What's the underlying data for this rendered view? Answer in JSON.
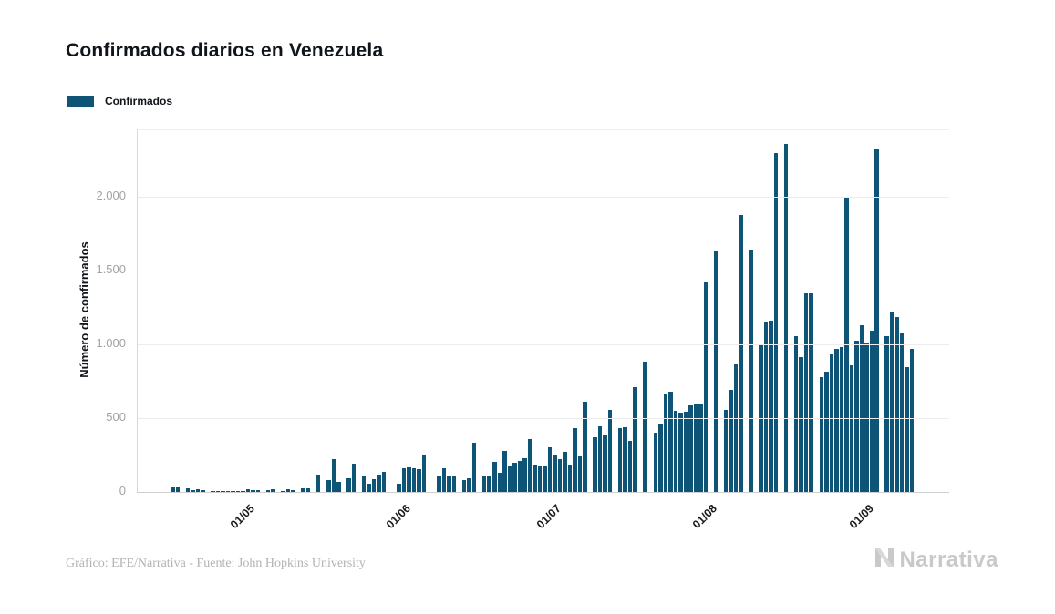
{
  "header": {
    "title": "Confirmados diarios en Venezuela"
  },
  "legend": {
    "label": "Confirmados",
    "swatch_color": "#0d5476"
  },
  "footer": {
    "credit": "Gráfico: EFE/Narrativa - Fuente: John Hopkins University",
    "logo_text": "Narrativa"
  },
  "chart_data": {
    "type": "bar",
    "title": "Confirmados diarios en Venezuela",
    "series_name": "Confirmados",
    "xlabel": "",
    "ylabel": "Número de confirmados",
    "ylim": [
      0,
      2450
    ],
    "grid": "horizontal",
    "legend_position": "top-left",
    "bar_color": "#0d5476",
    "y_ticks": [
      0,
      500,
      1000,
      1500,
      2000
    ],
    "y_tick_labels": [
      "0",
      "500",
      "1.000",
      "1.500",
      "2.000"
    ],
    "x_tick_labels": [
      "01/05",
      "01/06",
      "01/07",
      "01/08",
      "01/09"
    ],
    "x_tick_indices": [
      15,
      46,
      76,
      107,
      138
    ],
    "values": [
      30,
      28,
      0,
      25,
      10,
      18,
      14,
      0,
      4,
      8,
      4,
      6,
      4,
      2,
      3,
      18,
      14,
      10,
      0,
      14,
      16,
      0,
      8,
      20,
      14,
      0,
      24,
      22,
      0,
      120,
      0,
      82,
      220,
      65,
      0,
      90,
      190,
      0,
      110,
      55,
      84,
      120,
      137,
      0,
      0,
      55,
      158,
      168,
      162,
      152,
      245,
      0,
      0,
      113,
      162,
      107,
      110,
      0,
      81,
      94,
      333,
      0,
      108,
      108,
      206,
      129,
      275,
      181,
      198,
      212,
      229,
      358,
      185,
      181,
      181,
      302,
      244,
      223,
      269,
      185,
      435,
      240,
      612,
      0,
      370,
      446,
      385,
      556,
      0,
      431,
      441,
      348,
      712,
      0,
      885,
      0,
      400,
      462,
      660,
      680,
      550,
      540,
      545,
      587,
      590,
      598,
      1418,
      0,
      1634,
      0,
      553,
      689,
      862,
      1876,
      0,
      1643,
      0,
      998,
      1152,
      1162,
      2293,
      0,
      2360,
      0,
      1053,
      915,
      1345,
      1345,
      0,
      780,
      817,
      930,
      971,
      981,
      1994,
      860,
      1022,
      1130,
      1006,
      1094,
      2319,
      0,
      1058,
      1218,
      1187,
      1074,
      848,
      971
    ]
  }
}
